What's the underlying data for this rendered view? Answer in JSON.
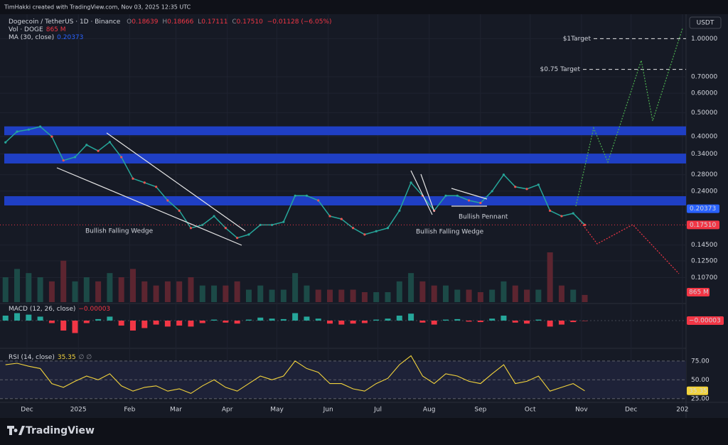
{
  "header": {
    "author": "TimHakki created with TradingView.com, Nov 03, 2025 12:35 UTC",
    "symbol": "Dogecoin / TetherUS · 1D · Binance",
    "ohlc": [
      {
        "key": "O",
        "value": "0.18639"
      },
      {
        "key": "H",
        "value": "0.18666"
      },
      {
        "key": "L",
        "value": "0.17111"
      },
      {
        "key": "C",
        "value": "0.17510"
      }
    ],
    "change": "−0.01128 (−6.05%)",
    "volume_label": "Vol · DOGE",
    "volume_value": "865 M",
    "ma_label": "MA (30, close)",
    "ma_value": "0.20373"
  },
  "currency": "USDT",
  "price": {
    "log": true,
    "ylim": [
      0.085,
      1.24
    ],
    "yticks": [
      {
        "value": 1.0,
        "label": "1.00000"
      },
      {
        "value": 0.7,
        "label": "0.70000"
      },
      {
        "value": 0.6,
        "label": "0.60000"
      },
      {
        "value": 0.5,
        "label": "0.50000"
      },
      {
        "value": 0.4,
        "label": "0.40000"
      },
      {
        "value": 0.34,
        "label": "0.34000"
      },
      {
        "value": 0.28,
        "label": "0.28000"
      },
      {
        "value": 0.24,
        "label": "0.24000"
      },
      {
        "value": 0.145,
        "label": "0.14500"
      },
      {
        "value": 0.125,
        "label": "0.12500"
      },
      {
        "value": 0.107,
        "label": "0.10700"
      }
    ],
    "dates": [
      "2024-11-18",
      "2024-11-25",
      "2024-12-02",
      "2024-12-09",
      "2024-12-16",
      "2024-12-23",
      "2024-12-30",
      "2025-01-06",
      "2025-01-13",
      "2025-01-20",
      "2025-01-27",
      "2025-02-03",
      "2025-02-10",
      "2025-02-17",
      "2025-02-24",
      "2025-03-03",
      "2025-03-10",
      "2025-03-17",
      "2025-03-24",
      "2025-03-31",
      "2025-04-07",
      "2025-04-14",
      "2025-04-21",
      "2025-04-28",
      "2025-05-05",
      "2025-05-12",
      "2025-05-19",
      "2025-05-26",
      "2025-06-02",
      "2025-06-09",
      "2025-06-16",
      "2025-06-23",
      "2025-06-30",
      "2025-07-07",
      "2025-07-14",
      "2025-07-21",
      "2025-07-28",
      "2025-08-04",
      "2025-08-11",
      "2025-08-18",
      "2025-08-25",
      "2025-09-01",
      "2025-09-08",
      "2025-09-15",
      "2025-09-22",
      "2025-09-29",
      "2025-10-06",
      "2025-10-13",
      "2025-10-20",
      "2025-10-27",
      "2025-11-03"
    ],
    "close": [
      0.379,
      0.419,
      0.427,
      0.439,
      0.4,
      0.32,
      0.33,
      0.37,
      0.35,
      0.38,
      0.33,
      0.27,
      0.26,
      0.25,
      0.22,
      0.2,
      0.17,
      0.175,
      0.19,
      0.17,
      0.155,
      0.16,
      0.175,
      0.175,
      0.18,
      0.23,
      0.23,
      0.22,
      0.19,
      0.185,
      0.17,
      0.16,
      0.165,
      0.17,
      0.2,
      0.26,
      0.23,
      0.2,
      0.23,
      0.23,
      0.22,
      0.215,
      0.24,
      0.28,
      0.25,
      0.245,
      0.255,
      0.2,
      0.19,
      0.195,
      0.1751
    ],
    "color": "#26a69a"
  },
  "zones": [
    {
      "low": 0.405,
      "high": 0.44
    },
    {
      "low": 0.311,
      "high": 0.341
    },
    {
      "low": 0.21,
      "high": 0.229
    }
  ],
  "zone_color": "#1f3fc4",
  "badges": [
    {
      "value": 0.20373,
      "label": "0.20373",
      "color": "#2962ff"
    },
    {
      "value": 0.1751,
      "label": "0.17510",
      "color": "#f23645"
    }
  ],
  "targets": [
    {
      "value": 1.0,
      "label": "$1Target"
    },
    {
      "value": 0.75,
      "label": "$0.75 Target"
    }
  ],
  "annotations": [
    "Bullish Falling Wedge",
    "Bullish Falling Wedge",
    "Bullish Pennant"
  ],
  "volume": {
    "values": [
      3000,
      4000,
      3500,
      3000,
      2500,
      5000,
      2500,
      3000,
      2500,
      3500,
      3000,
      4000,
      2500,
      2000,
      2500,
      2500,
      3000,
      2000,
      2000,
      2000,
      2500,
      1500,
      2000,
      1500,
      1500,
      3500,
      2000,
      1500,
      1500,
      1500,
      1500,
      1200,
      1200,
      1200,
      2500,
      3500,
      2500,
      2000,
      2000,
      1500,
      1500,
      1200,
      1500,
      2500,
      2000,
      1500,
      1500,
      6000,
      2000,
      1500,
      865
    ],
    "badge": "865 M"
  },
  "macd": {
    "label": "MACD (12, 26, close)",
    "value_label": "−0.00003",
    "ylim": [
      -0.03,
      0.03
    ],
    "histogram": [
      0.01,
      0.015,
      0.012,
      0.008,
      -0.005,
      -0.02,
      -0.025,
      -0.005,
      0.003,
      0.008,
      -0.01,
      -0.02,
      -0.015,
      -0.008,
      -0.012,
      -0.01,
      -0.012,
      -0.005,
      0.002,
      -0.004,
      -0.006,
      0.002,
      0.006,
      0.004,
      0.003,
      0.015,
      0.008,
      0.004,
      -0.006,
      -0.008,
      -0.006,
      -0.005,
      0.002,
      0.004,
      0.01,
      0.014,
      -0.004,
      -0.008,
      0.002,
      0.003,
      -0.002,
      -0.003,
      0.004,
      0.01,
      -0.004,
      -0.006,
      0.002,
      -0.012,
      -0.008,
      -0.003,
      -3e-05
    ]
  },
  "rsi": {
    "label": "RSI (14, close)",
    "value_label": "35.35",
    "extra": "∅ ∅",
    "color": "#f2d33c",
    "ylim": [
      21,
      89
    ],
    "yticks": [
      {
        "value": 75,
        "label": "75.00"
      },
      {
        "value": 50,
        "label": "50.00"
      },
      {
        "value": 25,
        "label": "25.00"
      }
    ],
    "values": [
      70,
      72,
      68,
      65,
      45,
      40,
      48,
      55,
      50,
      58,
      42,
      35,
      40,
      42,
      35,
      38,
      32,
      42,
      50,
      40,
      35,
      45,
      55,
      50,
      55,
      75,
      65,
      60,
      45,
      45,
      38,
      35,
      45,
      52,
      70,
      82,
      55,
      45,
      58,
      55,
      48,
      45,
      58,
      70,
      45,
      48,
      55,
      35,
      40,
      45,
      35.35
    ]
  },
  "time_axis": [
    {
      "value": "2024-12-01",
      "label": "Dec"
    },
    {
      "value": "2025-01-01",
      "label": "2025"
    },
    {
      "value": "2025-02-01",
      "label": "Feb"
    },
    {
      "value": "2025-03-01",
      "label": "Mar"
    },
    {
      "value": "2025-04-01",
      "label": "Apr"
    },
    {
      "value": "2025-05-01",
      "label": "May"
    },
    {
      "value": "2025-06-01",
      "label": "Jun"
    },
    {
      "value": "2025-07-01",
      "label": "Jul"
    },
    {
      "value": "2025-08-01",
      "label": "Aug"
    },
    {
      "value": "2025-09-01",
      "label": "Sep"
    },
    {
      "value": "2025-10-01",
      "label": "Oct"
    },
    {
      "value": "2025-11-01",
      "label": "Nov"
    },
    {
      "value": "2025-12-01",
      "label": "Dec"
    },
    {
      "value": "2026-01-01",
      "label": "202"
    }
  ],
  "footer": "TradingView"
}
